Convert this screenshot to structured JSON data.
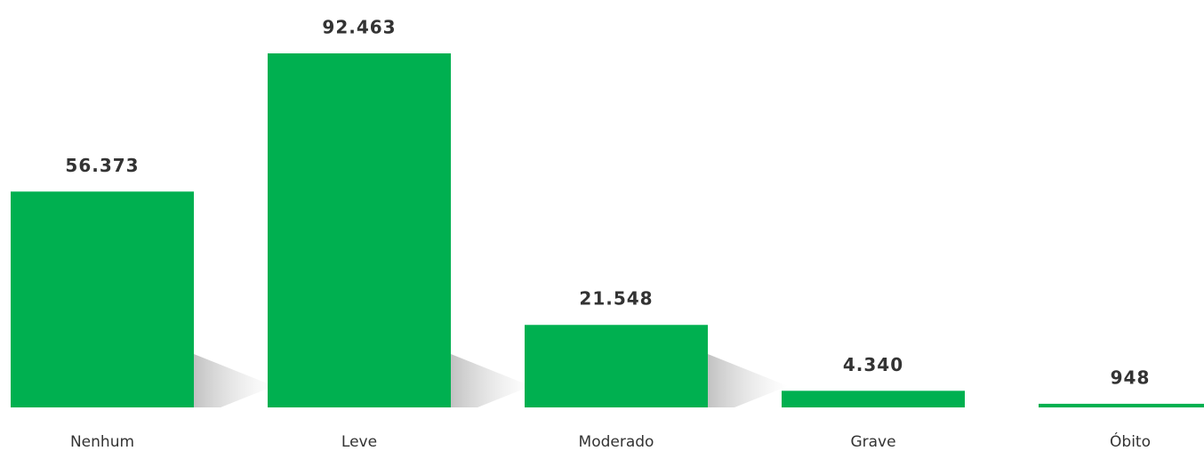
{
  "chart_data": {
    "type": "bar",
    "categories": [
      "Nenhum",
      "Leve",
      "Moderado",
      "Grave",
      "Óbito"
    ],
    "values": [
      56373,
      92463,
      21548,
      4340,
      948
    ],
    "value_labels": [
      "56.373",
      "92.463",
      "21.548",
      "4.340",
      "948"
    ],
    "color": "#00b050"
  }
}
